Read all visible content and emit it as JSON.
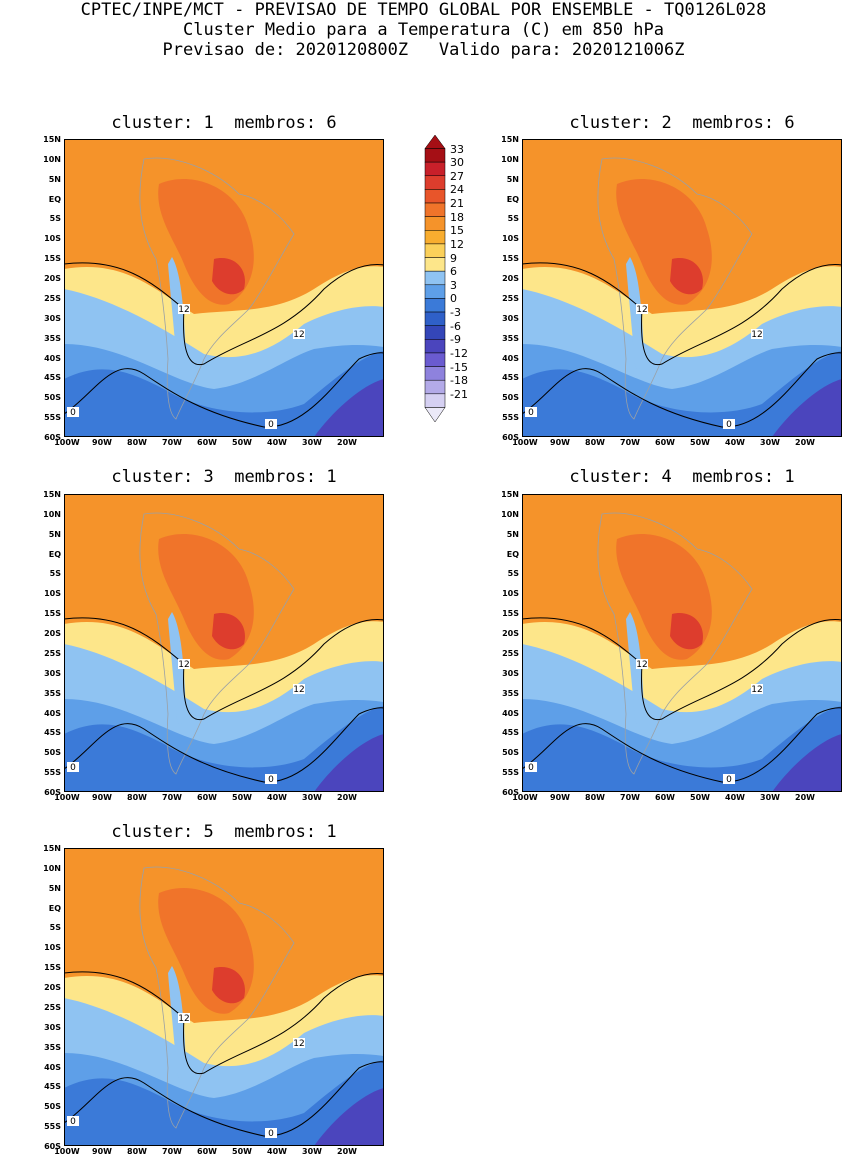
{
  "header": {
    "line1": "CPTEC/INPE/MCT - PREVISAO DE TEMPO GLOBAL POR ENSEMBLE - TQ0126L028",
    "line2": "Cluster Medio para a Temperatura (C) em 850 hPa",
    "line3": "Previsao de: 2020120800Z   Valido para: 2020121006Z"
  },
  "panels": [
    {
      "title": "cluster: 1  membros: 6"
    },
    {
      "title": "cluster: 2  membros: 6"
    },
    {
      "title": "cluster: 3  membros: 1"
    },
    {
      "title": "cluster: 4  membros: 1"
    },
    {
      "title": "cluster: 5  membros: 1"
    }
  ],
  "axes": {
    "lat_labels": [
      "15N",
      "10N",
      "5N",
      "EQ",
      "5S",
      "10S",
      "15S",
      "20S",
      "25S",
      "30S",
      "35S",
      "40S",
      "45S",
      "50S",
      "55S",
      "60S"
    ],
    "lon_labels": [
      "100W",
      "90W",
      "80W",
      "70W",
      "60W",
      "50W",
      "40W",
      "30W",
      "20W"
    ]
  },
  "contour_labels": {
    "c12": "12",
    "c0": "0"
  },
  "colorbar": {
    "levels": [
      "33",
      "30",
      "27",
      "24",
      "21",
      "18",
      "15",
      "12",
      "9",
      "6",
      "3",
      "0",
      "-3",
      "-6",
      "-9",
      "-12",
      "-15",
      "-18",
      "-21"
    ],
    "colors": [
      "#a50f15",
      "#c8202a",
      "#dd3d2d",
      "#e8552a",
      "#f0742a",
      "#f5932a",
      "#f8ad2f",
      "#fbd05a",
      "#fde68a",
      "#8fc3f2",
      "#5e9fe8",
      "#3b7ad8",
      "#2f60c8",
      "#3446b8",
      "#4b45bd",
      "#6a5bd0",
      "#8e82dd",
      "#b3aae8",
      "#d5d0f2"
    ]
  }
}
